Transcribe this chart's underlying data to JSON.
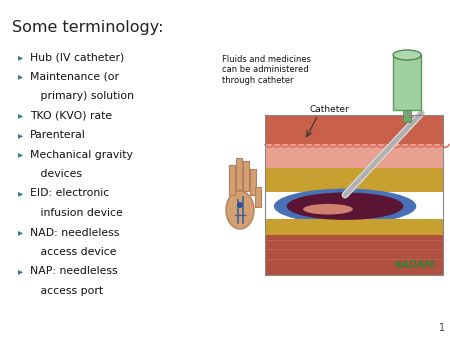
{
  "title": "Some terminology:",
  "title_fontsize": 11.5,
  "title_color": "#222222",
  "background_color": "#ffffff",
  "bullet_color": "#2E7F8A",
  "text_color": "#111111",
  "text_fontsize": 7.8,
  "slide_number": "1",
  "bullets": [
    [
      "Hub (IV catheter)",
      false
    ],
    [
      "Maintenance (or",
      false
    ],
    [
      "   primary) solution",
      true
    ],
    [
      "TKO (KVO) rate",
      false
    ],
    [
      "Parenteral",
      false
    ],
    [
      "Mechanical gravity",
      false
    ],
    [
      "   devices",
      true
    ],
    [
      "EID: electronic",
      false
    ],
    [
      "   infusion device",
      true
    ],
    [
      "NAD: needleless",
      false
    ],
    [
      "   access device",
      true
    ],
    [
      "NAP: needleless",
      false
    ],
    [
      "   access port",
      true
    ]
  ],
  "annotation_text": "Fluids and medicines\ncan be administered\nthrough catheter",
  "catheter_label": "Catheter",
  "adam_text": "✱ADAM.",
  "adam_color": "#3a7a3a"
}
